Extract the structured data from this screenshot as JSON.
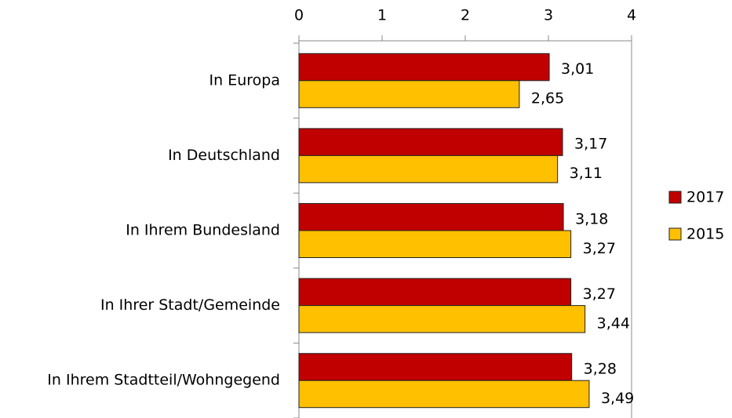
{
  "chart_data": {
    "type": "bar",
    "orientation": "horizontal",
    "categories": [
      "In Europa",
      "In Deutschland",
      "In Ihrem Bundesland",
      "In Ihrer Stadt/Gemeinde",
      "In Ihrem Stadtteil/Wohngegend"
    ],
    "series": [
      {
        "name": "2017",
        "color": "#c00000",
        "values": [
          3.01,
          3.17,
          3.18,
          3.27,
          3.28
        ],
        "value_labels": [
          "3,01",
          "3,17",
          "3,18",
          "3,27",
          "3,28"
        ]
      },
      {
        "name": "2015",
        "color": "#ffc000",
        "values": [
          2.65,
          3.11,
          3.27,
          3.44,
          3.49
        ],
        "value_labels": [
          "2,65",
          "3,11",
          "3,27",
          "3,44",
          "3,49"
        ]
      }
    ],
    "xlim": [
      0,
      4
    ],
    "xticks": [
      0,
      1,
      2,
      3,
      4
    ],
    "legend": "right"
  }
}
